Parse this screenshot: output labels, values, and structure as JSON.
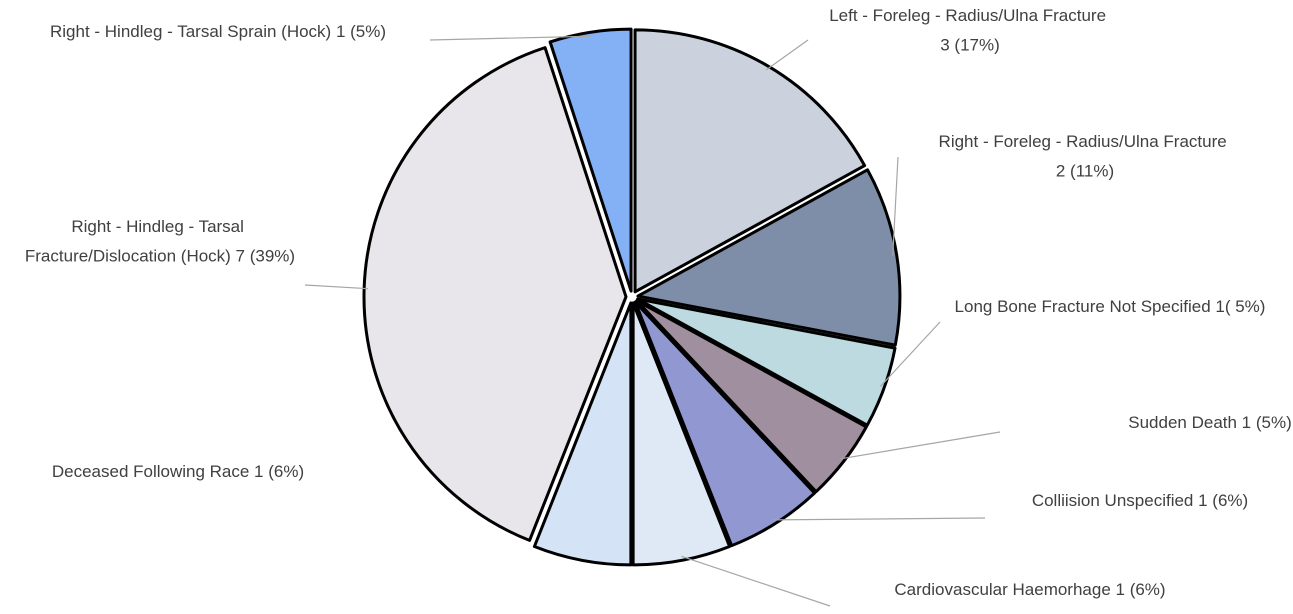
{
  "chart_data": {
    "type": "pie",
    "categories": [
      "Left - Foreleg - Radius/Ulna Fracture 3 (17%)",
      "Right - Foreleg - Radius/Ulna Fracture 2 (11%)",
      "Long Bone Fracture Not Specified 1( 5%)",
      "Sudden Death 1 (5%)",
      "Colliision Unspecified 1 (6%)",
      "Cardiovascular Haemorhage 1 (6%)",
      "Deceased Following Race 1 (6%)",
      "Right - Hindleg - Tarsal Fracture/Dislocation (Hock) 7 (39%)",
      "Right - Hindleg - Tarsal Sprain (Hock) 1 (5%)"
    ],
    "values": [
      17,
      11,
      5,
      5,
      6,
      6,
      6,
      39,
      5
    ],
    "colors": [
      "#cbd2de",
      "#7f8ea8",
      "#bcdadf",
      "#a0909f",
      "#9097d1",
      "#dfe9f5",
      "#d4e3f5",
      "#e8e6eb",
      "#84b0f5"
    ]
  }
}
